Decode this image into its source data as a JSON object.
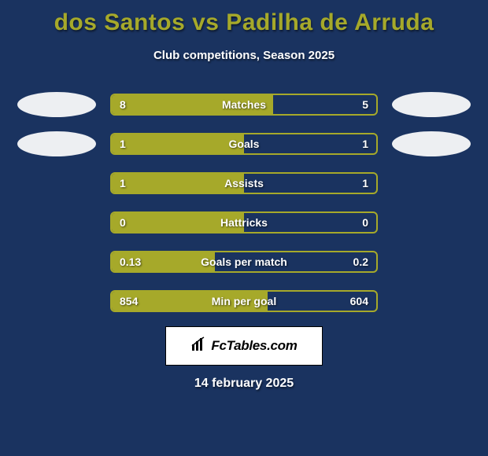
{
  "title": "dos Santos vs Padilha de Arruda",
  "subtitle": "Club competitions, Season 2025",
  "date": "14 february 2025",
  "logo_text": "FcTables.com",
  "colors": {
    "bg": "#1a3360",
    "accent": "#a6a92a",
    "text": "#ffffff",
    "oval": "#ffffff"
  },
  "rows": [
    {
      "label": "Matches",
      "left": "8",
      "right": "5",
      "fill_pct": 61,
      "show_ovals": true
    },
    {
      "label": "Goals",
      "left": "1",
      "right": "1",
      "fill_pct": 50,
      "show_ovals": true
    },
    {
      "label": "Assists",
      "left": "1",
      "right": "1",
      "fill_pct": 50,
      "show_ovals": false
    },
    {
      "label": "Hattricks",
      "left": "0",
      "right": "0",
      "fill_pct": 50,
      "show_ovals": false
    },
    {
      "label": "Goals per match",
      "left": "0.13",
      "right": "0.2",
      "fill_pct": 39,
      "show_ovals": false
    },
    {
      "label": "Min per goal",
      "left": "854",
      "right": "604",
      "fill_pct": 59,
      "show_ovals": false
    }
  ]
}
